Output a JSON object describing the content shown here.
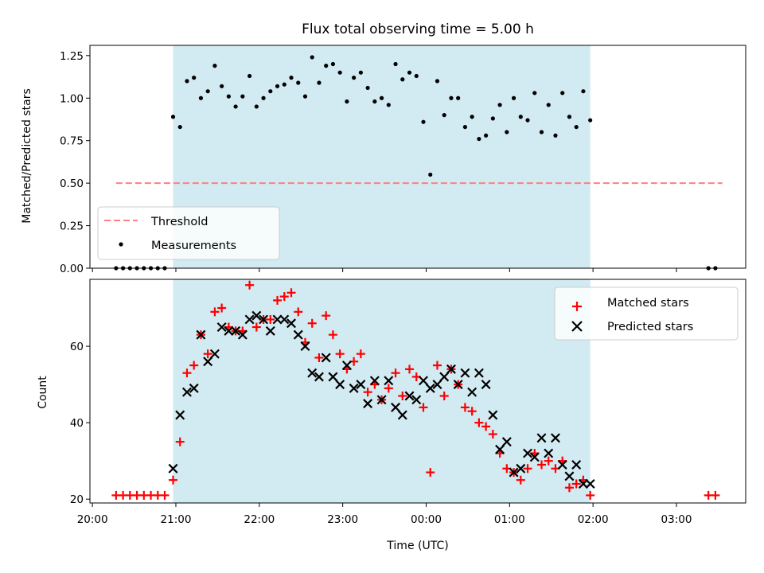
{
  "figure": {
    "title": "Flux total observing time = 5.00 h",
    "xlabel": "Time (UTC)"
  },
  "colors": {
    "shade": "#add8e6",
    "threshold": "#ff7f7f",
    "matched": "#ff0000",
    "predicted": "#000000",
    "measurement": "#000000"
  },
  "chart_data": [
    {
      "type": "scatter",
      "panel": "top",
      "title": "Flux total observing time = 5.00 h",
      "ylabel": "Matched/Predicted stars",
      "xlabel": "",
      "x_unit": "hours since 20:00 UTC",
      "xlim": [
        -0.03,
        7.83
      ],
      "ylim": [
        0.0,
        1.31
      ],
      "yticks": [
        0.0,
        0.25,
        0.5,
        0.75,
        1.0,
        1.25
      ],
      "ytick_labels": [
        "0.00",
        "0.25",
        "0.50",
        "0.75",
        "1.00",
        "1.25"
      ],
      "shaded_region": [
        "20:58",
        "01:58"
      ],
      "legend": {
        "position": "lower-left",
        "entries": [
          "Threshold",
          "Measurements"
        ]
      },
      "threshold": {
        "name": "Threshold",
        "y": 0.5,
        "x_start": "20:17",
        "x_end": "03:33"
      },
      "series": [
        {
          "name": "Measurements",
          "marker": "dot",
          "points": [
            [
              "20:17",
              0
            ],
            [
              "20:22",
              0
            ],
            [
              "20:27",
              0
            ],
            [
              "20:32",
              0
            ],
            [
              "20:37",
              0
            ],
            [
              "20:42",
              0
            ],
            [
              "20:47",
              0
            ],
            [
              "20:52",
              0
            ],
            [
              "20:58",
              0.89
            ],
            [
              "21:03",
              0.83
            ],
            [
              "21:08",
              1.1
            ],
            [
              "21:13",
              1.12
            ],
            [
              "21:18",
              1.0
            ],
            [
              "21:23",
              1.04
            ],
            [
              "21:28",
              1.19
            ],
            [
              "21:33",
              1.07
            ],
            [
              "21:38",
              1.01
            ],
            [
              "21:43",
              0.95
            ],
            [
              "21:48",
              1.01
            ],
            [
              "21:53",
              1.13
            ],
            [
              "21:58",
              0.95
            ],
            [
              "22:03",
              1.0
            ],
            [
              "22:08",
              1.04
            ],
            [
              "22:13",
              1.07
            ],
            [
              "22:18",
              1.08
            ],
            [
              "22:23",
              1.12
            ],
            [
              "22:28",
              1.09
            ],
            [
              "22:33",
              1.01
            ],
            [
              "22:38",
              1.24
            ],
            [
              "22:43",
              1.09
            ],
            [
              "22:48",
              1.19
            ],
            [
              "22:53",
              1.2
            ],
            [
              "22:58",
              1.15
            ],
            [
              "23:03",
              0.98
            ],
            [
              "23:08",
              1.12
            ],
            [
              "23:13",
              1.15
            ],
            [
              "23:18",
              1.06
            ],
            [
              "23:23",
              0.98
            ],
            [
              "23:28",
              1.0
            ],
            [
              "23:33",
              0.96
            ],
            [
              "23:38",
              1.2
            ],
            [
              "23:43",
              1.11
            ],
            [
              "23:48",
              1.15
            ],
            [
              "23:53",
              1.13
            ],
            [
              "23:58",
              0.86
            ],
            [
              "00:03",
              0.55
            ],
            [
              "00:08",
              1.1
            ],
            [
              "00:13",
              0.9
            ],
            [
              "00:18",
              1.0
            ],
            [
              "00:23",
              1.0
            ],
            [
              "00:28",
              0.83
            ],
            [
              "00:33",
              0.89
            ],
            [
              "00:38",
              0.76
            ],
            [
              "00:43",
              0.78
            ],
            [
              "00:48",
              0.88
            ],
            [
              "00:53",
              0.96
            ],
            [
              "00:58",
              0.8
            ],
            [
              "01:03",
              1.0
            ],
            [
              "01:08",
              0.89
            ],
            [
              "01:13",
              0.87
            ],
            [
              "01:18",
              1.03
            ],
            [
              "01:23",
              0.8
            ],
            [
              "01:28",
              0.96
            ],
            [
              "01:33",
              0.78
            ],
            [
              "01:38",
              1.03
            ],
            [
              "01:43",
              0.89
            ],
            [
              "01:48",
              0.83
            ],
            [
              "01:53",
              1.04
            ],
            [
              "01:58",
              0.87
            ],
            [
              "03:23",
              0
            ],
            [
              "03:28",
              0
            ]
          ]
        }
      ]
    },
    {
      "type": "scatter",
      "panel": "bottom",
      "ylabel": "Count",
      "xlabel": "Time (UTC)",
      "x_unit": "hours since 20:00 UTC",
      "xlim": [
        -0.03,
        7.83
      ],
      "ylim": [
        19.0,
        77.5
      ],
      "yticks": [
        20,
        40,
        60
      ],
      "ytick_labels": [
        "20",
        "40",
        "60"
      ],
      "xticks": [
        "20:00",
        "21:00",
        "22:00",
        "23:00",
        "00:00",
        "01:00",
        "02:00",
        "03:00"
      ],
      "shaded_region": [
        "20:58",
        "01:58"
      ],
      "legend": {
        "position": "top-right",
        "entries": [
          "Matched stars",
          "Predicted stars"
        ]
      },
      "series": [
        {
          "name": "Matched stars",
          "marker": "plus",
          "points": [
            [
              "20:17",
              21
            ],
            [
              "20:22",
              21
            ],
            [
              "20:27",
              21
            ],
            [
              "20:32",
              21
            ],
            [
              "20:37",
              21
            ],
            [
              "20:42",
              21
            ],
            [
              "20:47",
              21
            ],
            [
              "20:52",
              21
            ],
            [
              "20:58",
              25
            ],
            [
              "21:03",
              35
            ],
            [
              "21:08",
              53
            ],
            [
              "21:13",
              55
            ],
            [
              "21:18",
              63
            ],
            [
              "21:23",
              58
            ],
            [
              "21:28",
              69
            ],
            [
              "21:33",
              70
            ],
            [
              "21:38",
              65
            ],
            [
              "21:43",
              64
            ],
            [
              "21:48",
              64
            ],
            [
              "21:53",
              76
            ],
            [
              "21:58",
              65
            ],
            [
              "22:03",
              67
            ],
            [
              "22:08",
              67
            ],
            [
              "22:13",
              72
            ],
            [
              "22:18",
              73
            ],
            [
              "22:23",
              74
            ],
            [
              "22:28",
              69
            ],
            [
              "22:33",
              61
            ],
            [
              "22:38",
              66
            ],
            [
              "22:43",
              57
            ],
            [
              "22:48",
              68
            ],
            [
              "22:53",
              63
            ],
            [
              "22:58",
              58
            ],
            [
              "23:03",
              54
            ],
            [
              "23:08",
              56
            ],
            [
              "23:13",
              58
            ],
            [
              "23:18",
              48
            ],
            [
              "23:23",
              50
            ],
            [
              "23:28",
              46
            ],
            [
              "23:33",
              49
            ],
            [
              "23:38",
              53
            ],
            [
              "23:43",
              47
            ],
            [
              "23:48",
              54
            ],
            [
              "23:53",
              52
            ],
            [
              "23:58",
              44
            ],
            [
              "00:03",
              27
            ],
            [
              "00:08",
              55
            ],
            [
              "00:13",
              47
            ],
            [
              "00:18",
              54
            ],
            [
              "00:23",
              50
            ],
            [
              "00:28",
              44
            ],
            [
              "00:33",
              43
            ],
            [
              "00:38",
              40
            ],
            [
              "00:43",
              39
            ],
            [
              "00:48",
              37
            ],
            [
              "00:53",
              32
            ],
            [
              "00:58",
              28
            ],
            [
              "01:03",
              27
            ],
            [
              "01:08",
              25
            ],
            [
              "01:13",
              28
            ],
            [
              "01:18",
              32
            ],
            [
              "01:23",
              29
            ],
            [
              "01:28",
              30
            ],
            [
              "01:33",
              28
            ],
            [
              "01:38",
              30
            ],
            [
              "01:43",
              23
            ],
            [
              "01:48",
              24
            ],
            [
              "01:53",
              25
            ],
            [
              "01:58",
              21
            ],
            [
              "03:23",
              21
            ],
            [
              "03:28",
              21
            ]
          ]
        },
        {
          "name": "Predicted stars",
          "marker": "x",
          "points": [
            [
              "20:58",
              28
            ],
            [
              "21:03",
              42
            ],
            [
              "21:08",
              48
            ],
            [
              "21:13",
              49
            ],
            [
              "21:18",
              63
            ],
            [
              "21:23",
              56
            ],
            [
              "21:28",
              58
            ],
            [
              "21:33",
              65
            ],
            [
              "21:38",
              64
            ],
            [
              "21:43",
              64
            ],
            [
              "21:48",
              63
            ],
            [
              "21:53",
              67
            ],
            [
              "21:58",
              68
            ],
            [
              "22:03",
              67
            ],
            [
              "22:08",
              64
            ],
            [
              "22:13",
              67
            ],
            [
              "22:18",
              67
            ],
            [
              "22:23",
              66
            ],
            [
              "22:28",
              63
            ],
            [
              "22:33",
              60
            ],
            [
              "22:38",
              53
            ],
            [
              "22:43",
              52
            ],
            [
              "22:48",
              57
            ],
            [
              "22:53",
              52
            ],
            [
              "22:58",
              50
            ],
            [
              "23:03",
              55
            ],
            [
              "23:08",
              49
            ],
            [
              "23:13",
              50
            ],
            [
              "23:18",
              45
            ],
            [
              "23:23",
              51
            ],
            [
              "23:28",
              46
            ],
            [
              "23:33",
              51
            ],
            [
              "23:38",
              44
            ],
            [
              "23:43",
              42
            ],
            [
              "23:48",
              47
            ],
            [
              "23:53",
              46
            ],
            [
              "23:58",
              51
            ],
            [
              "00:03",
              49
            ],
            [
              "00:08",
              50
            ],
            [
              "00:13",
              52
            ],
            [
              "00:18",
              54
            ],
            [
              "00:23",
              50
            ],
            [
              "00:28",
              53
            ],
            [
              "00:33",
              48
            ],
            [
              "00:38",
              53
            ],
            [
              "00:43",
              50
            ],
            [
              "00:48",
              42
            ],
            [
              "00:53",
              33
            ],
            [
              "00:58",
              35
            ],
            [
              "01:03",
              27
            ],
            [
              "01:08",
              28
            ],
            [
              "01:13",
              32
            ],
            [
              "01:18",
              31
            ],
            [
              "01:23",
              36
            ],
            [
              "01:28",
              32
            ],
            [
              "01:33",
              36
            ],
            [
              "01:38",
              29
            ],
            [
              "01:43",
              26
            ],
            [
              "01:48",
              29
            ],
            [
              "01:53",
              24
            ],
            [
              "01:58",
              24
            ]
          ]
        }
      ]
    }
  ]
}
